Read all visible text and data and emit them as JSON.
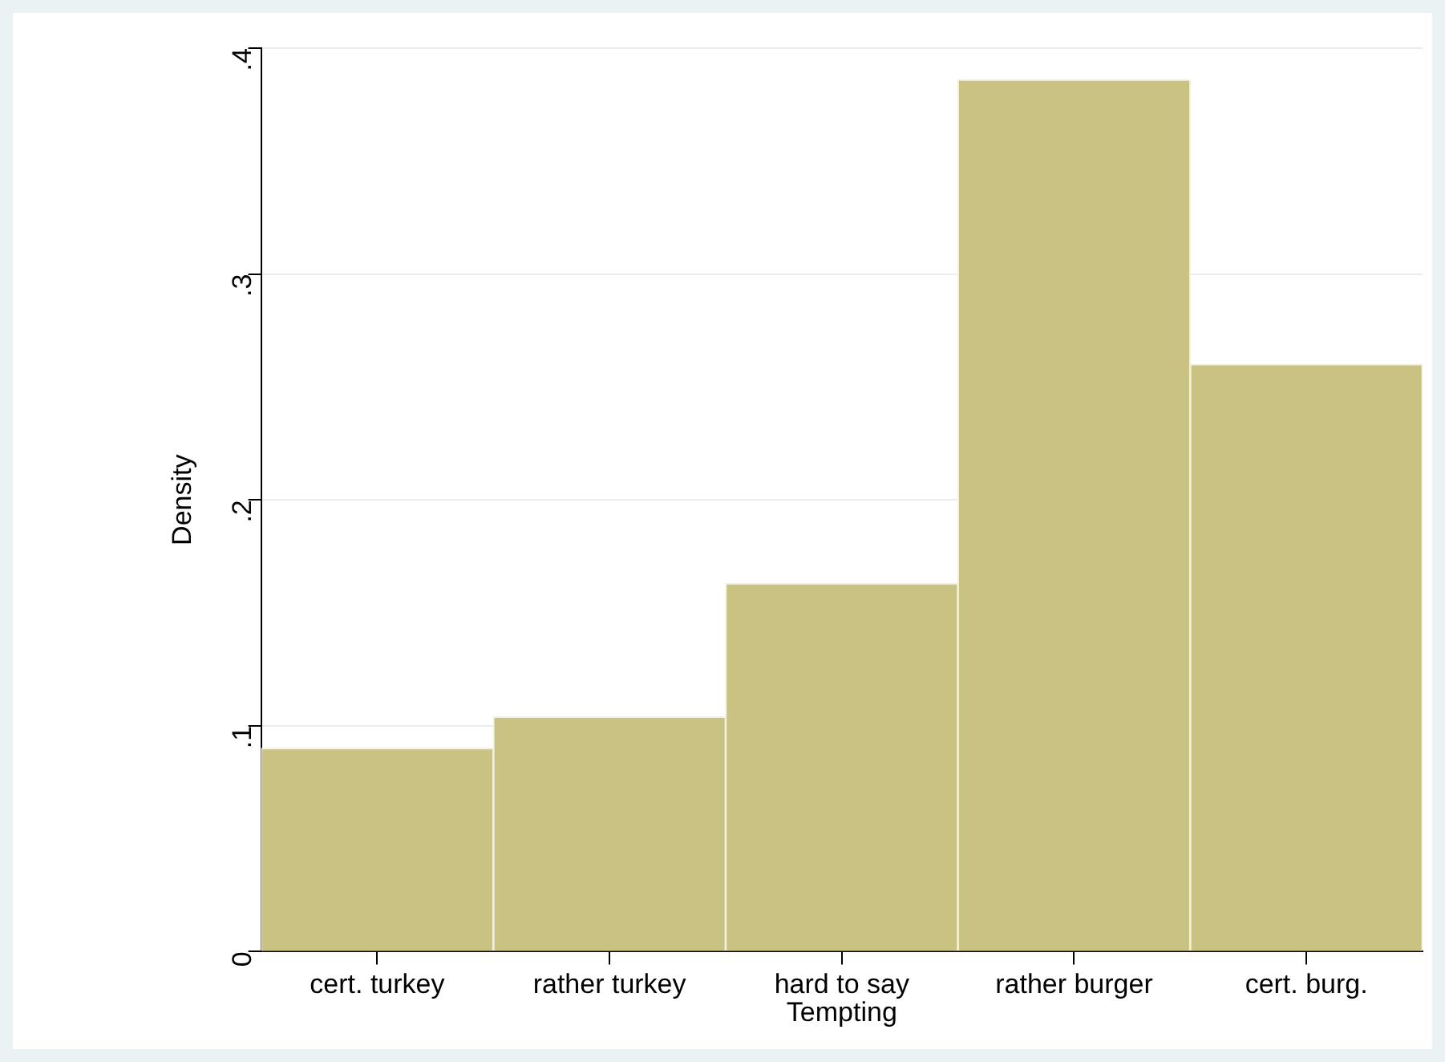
{
  "chart_data": {
    "type": "bar",
    "xlabel": "Tempting",
    "ylabel": "Density",
    "categories": [
      "cert. turkey",
      "rather turkey",
      "hard to say",
      "rather burger",
      "cert. burg."
    ],
    "values": [
      0.09,
      0.104,
      0.163,
      0.386,
      0.26
    ],
    "color": "#c9c282",
    "ylim": [
      0,
      0.4
    ],
    "yticks": [
      0,
      {
        "value": 0.1,
        "label": ".1"
      },
      {
        "value": 0.2,
        "label": ".2"
      },
      {
        "value": 0.3,
        "label": ".3"
      },
      {
        "value": 0.4,
        "label": ".4"
      }
    ],
    "grid": "y"
  }
}
